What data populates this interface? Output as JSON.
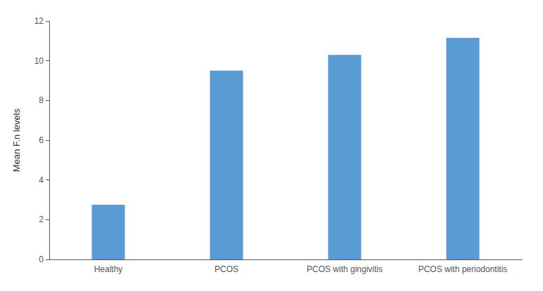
{
  "chart_data": {
    "type": "bar",
    "categories": [
      "Healthy",
      "PCOS",
      "PCOS with gingivitis",
      "PCOS with periodontitis"
    ],
    "values": [
      2.75,
      9.5,
      10.3,
      11.15
    ],
    "color": "#5b9bd5",
    "ylabel": "Mean F.n levels",
    "ylim": [
      0,
      12
    ],
    "yticks": [
      0,
      2,
      4,
      6,
      8,
      10,
      12
    ],
    "grid": false
  }
}
